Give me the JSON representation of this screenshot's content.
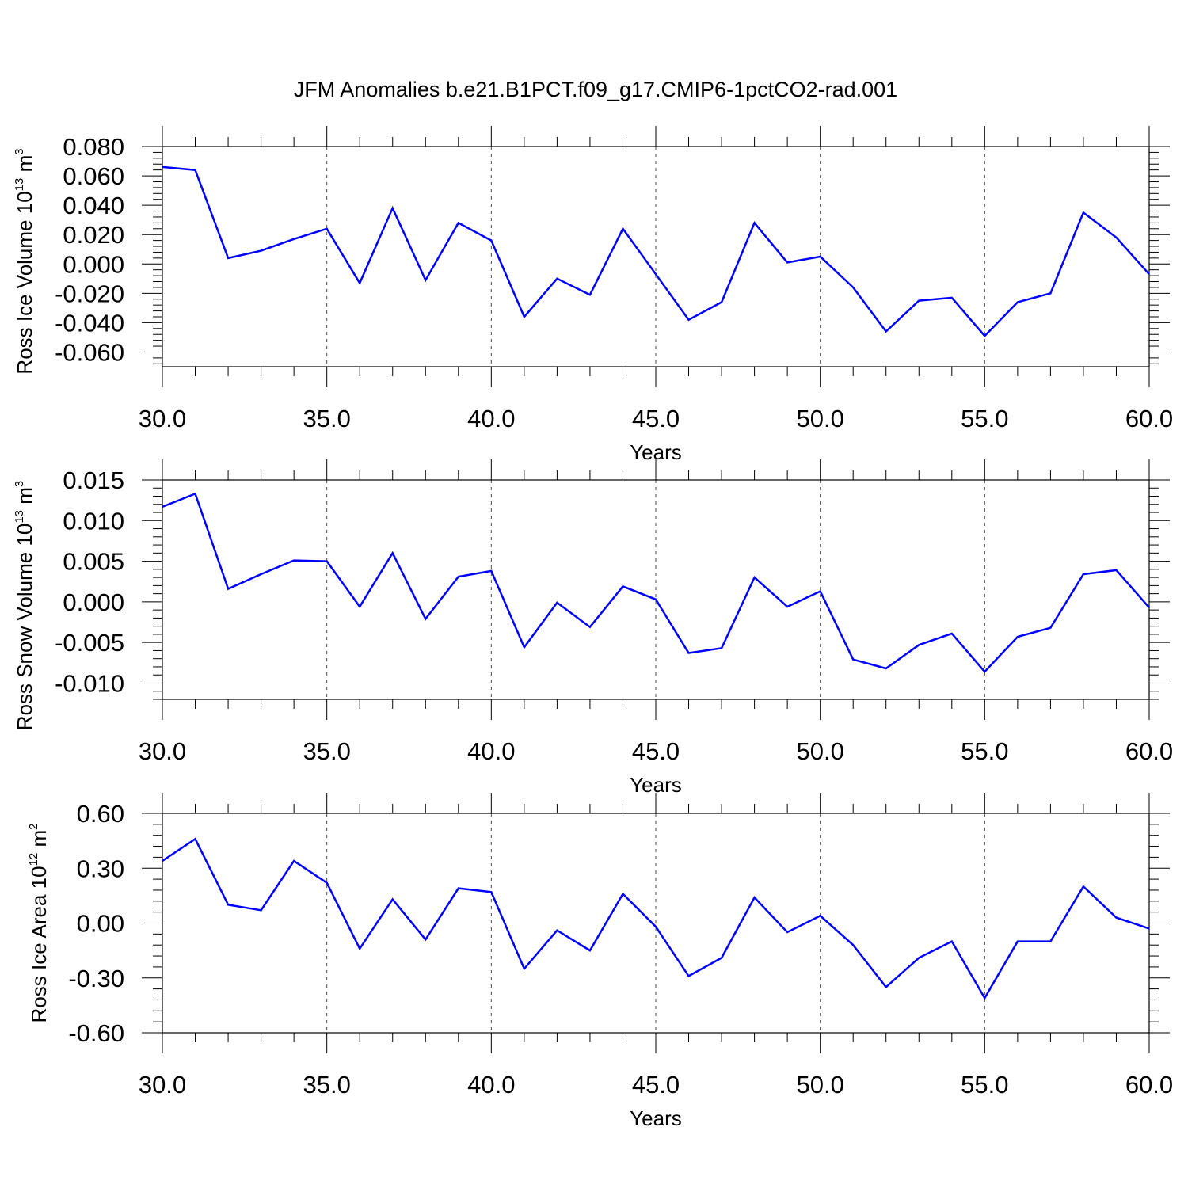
{
  "title": "JFM Anomalies b.e21.B1PCT.f09_g17.CMIP6-1pctCO2-rad.001",
  "colors": {
    "line": "#0000ff",
    "axis": "#000000",
    "grid": "#000000"
  },
  "chart_data": [
    {
      "type": "line",
      "ylabel": {
        "main": "Ross Ice Volume 10",
        "exp": "13",
        "unit": " m",
        "unit_exp": "3"
      },
      "xlabel": "Years",
      "xlim": [
        30,
        60
      ],
      "ylim": [
        -0.07,
        0.08
      ],
      "xticks": [
        "30.0",
        "35.0",
        "40.0",
        "45.0",
        "50.0",
        "55.0",
        "60.0"
      ],
      "yticks": [
        "0.080",
        "0.060",
        "0.040",
        "0.020",
        "0.000",
        "-0.020",
        "-0.040",
        "-0.060"
      ],
      "ytick_values": [
        0.08,
        0.06,
        0.04,
        0.02,
        0.0,
        -0.02,
        -0.04,
        -0.06
      ],
      "grid": "dashed vertical at major x ticks",
      "x": [
        30,
        31,
        32,
        33,
        34,
        35,
        36,
        37,
        38,
        39,
        40,
        41,
        42,
        43,
        44,
        45,
        46,
        47,
        48,
        49,
        50,
        51,
        52,
        53,
        54,
        55,
        56,
        57,
        58,
        59,
        60
      ],
      "values": [
        0.066,
        0.064,
        0.004,
        0.009,
        0.017,
        0.024,
        -0.013,
        0.038,
        -0.011,
        0.028,
        0.016,
        -0.036,
        -0.01,
        -0.021,
        0.024,
        -0.007,
        -0.038,
        -0.026,
        0.028,
        0.001,
        0.005,
        -0.016,
        -0.046,
        -0.025,
        -0.023,
        -0.049,
        -0.026,
        -0.02,
        0.035,
        0.018,
        -0.007
      ]
    },
    {
      "type": "line",
      "ylabel": {
        "main": "Ross Snow Volume 10",
        "exp": "13",
        "unit": " m",
        "unit_exp": "3"
      },
      "xlabel": "Years",
      "xlim": [
        30,
        60
      ],
      "ylim": [
        -0.012,
        0.016
      ],
      "xticks": [
        "30.0",
        "35.0",
        "40.0",
        "45.0",
        "50.0",
        "55.0",
        "60.0"
      ],
      "yticks": [
        "0.015",
        "0.010",
        "0.005",
        "0.000",
        "-0.005",
        "-0.010"
      ],
      "ytick_values": [
        0.015,
        0.01,
        0.005,
        0.0,
        -0.005,
        -0.01
      ],
      "grid": "dashed vertical at major x ticks",
      "x": [
        30,
        31,
        32,
        33,
        34,
        35,
        36,
        37,
        38,
        39,
        40,
        41,
        42,
        43,
        44,
        45,
        46,
        47,
        48,
        49,
        50,
        51,
        52,
        53,
        54,
        55,
        56,
        57,
        58,
        59,
        60
      ],
      "values": [
        0.0117,
        0.0133,
        0.0016,
        0.0034,
        0.0051,
        0.005,
        -0.0006,
        0.006,
        -0.0021,
        0.0031,
        0.0038,
        -0.0056,
        -0.0001,
        -0.0031,
        0.0019,
        0.0003,
        -0.0063,
        -0.0057,
        0.003,
        -0.0006,
        0.0013,
        -0.0071,
        -0.0082,
        -0.0053,
        -0.0039,
        -0.0086,
        -0.0043,
        -0.0032,
        0.0034,
        0.0039,
        -0.0007
      ]
    },
    {
      "type": "line",
      "ylabel": {
        "main": "Ross Ice Area 10",
        "exp": "12",
        "unit": " m",
        "unit_exp": "2"
      },
      "xlabel": "Years",
      "xlim": [
        30,
        60
      ],
      "ylim": [
        -0.6,
        0.6
      ],
      "xticks": [
        "30.0",
        "35.0",
        "40.0",
        "45.0",
        "50.0",
        "55.0",
        "60.0"
      ],
      "yticks": [
        "0.60",
        "0.30",
        "0.00",
        "-0.30",
        "-0.60"
      ],
      "ytick_values": [
        0.6,
        0.3,
        0.0,
        -0.3,
        -0.6
      ],
      "grid": "dashed vertical at major x ticks",
      "x": [
        30,
        31,
        32,
        33,
        34,
        35,
        36,
        37,
        38,
        39,
        40,
        41,
        42,
        43,
        44,
        45,
        46,
        47,
        48,
        49,
        50,
        51,
        52,
        53,
        54,
        55,
        56,
        57,
        58,
        59,
        60
      ],
      "values": [
        0.34,
        0.46,
        0.1,
        0.07,
        0.34,
        0.22,
        -0.14,
        0.13,
        -0.09,
        0.19,
        0.17,
        -0.25,
        -0.04,
        -0.15,
        0.16,
        -0.02,
        -0.29,
        -0.19,
        0.14,
        -0.05,
        0.04,
        -0.12,
        -0.35,
        -0.19,
        -0.1,
        -0.41,
        -0.1,
        -0.1,
        0.2,
        0.03,
        -0.03
      ]
    }
  ]
}
